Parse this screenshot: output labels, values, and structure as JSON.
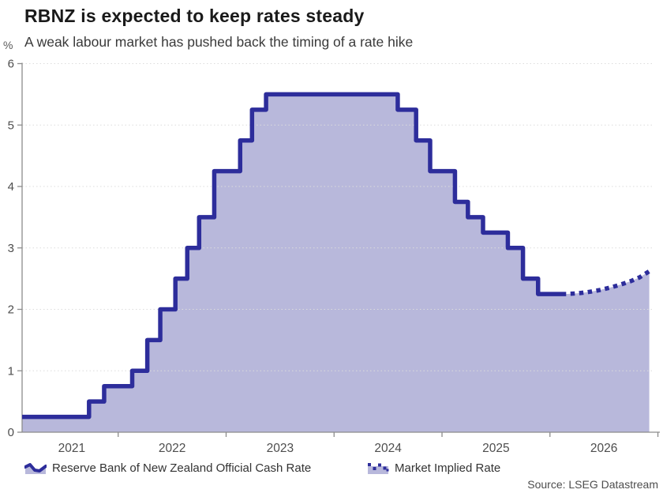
{
  "header": {
    "title": "RBNZ is expected to keep rates steady",
    "subtitle": "A weak labour market has pushed back the timing of a rate hike"
  },
  "chart_data": {
    "type": "area",
    "title": "RBNZ is expected to keep rates steady",
    "subtitle": "A weak labour market has pushed back the timing of a rate hike",
    "unit_label": "%",
    "ylabel": "%",
    "xlabel": "",
    "ylim": [
      0,
      6
    ],
    "y_ticks": [
      0,
      1,
      2,
      3,
      4,
      5,
      6
    ],
    "x_domain": [
      2021.11,
      2026.92
    ],
    "x_tick_years": [
      2022,
      2023,
      2024,
      2025,
      2026,
      2027
    ],
    "x_labels": [
      {
        "label": "2021",
        "center": 2021.57
      },
      {
        "label": "2022",
        "center": 2022.5
      },
      {
        "label": "2023",
        "center": 2023.5
      },
      {
        "label": "2024",
        "center": 2024.5
      },
      {
        "label": "2025",
        "center": 2025.5
      },
      {
        "label": "2026",
        "center": 2026.5
      }
    ],
    "grid": true,
    "legend_position": "bottom",
    "series": [
      {
        "name": "Reserve Bank of New Zealand Official Cash Rate",
        "type": "step-area",
        "line_style": "solid",
        "points": [
          [
            2021.11,
            0.25
          ],
          [
            2021.73,
            0.5
          ],
          [
            2021.87,
            0.75
          ],
          [
            2022.13,
            1.0
          ],
          [
            2022.27,
            1.5
          ],
          [
            2022.39,
            2.0
          ],
          [
            2022.53,
            2.5
          ],
          [
            2022.64,
            3.0
          ],
          [
            2022.75,
            3.5
          ],
          [
            2022.89,
            4.25
          ],
          [
            2023.13,
            4.75
          ],
          [
            2023.24,
            5.25
          ],
          [
            2023.37,
            5.5
          ],
          [
            2024.59,
            5.25
          ],
          [
            2024.76,
            4.75
          ],
          [
            2024.89,
            4.25
          ],
          [
            2025.12,
            3.75
          ],
          [
            2025.24,
            3.5
          ],
          [
            2025.38,
            3.25
          ],
          [
            2025.61,
            3.0
          ],
          [
            2025.75,
            2.5
          ],
          [
            2025.89,
            2.25
          ],
          [
            2026.15,
            2.25
          ]
        ]
      },
      {
        "name": "Market Implied Rate",
        "type": "line",
        "line_style": "dotted",
        "points": [
          [
            2026.15,
            2.25
          ],
          [
            2026.25,
            2.26
          ],
          [
            2026.35,
            2.28
          ],
          [
            2026.45,
            2.31
          ],
          [
            2026.55,
            2.35
          ],
          [
            2026.65,
            2.4
          ],
          [
            2026.75,
            2.46
          ],
          [
            2026.83,
            2.52
          ],
          [
            2026.92,
            2.62
          ]
        ]
      }
    ]
  },
  "footer": {
    "source": "Source: LSEG Datastream"
  },
  "colors": {
    "line": "#2d2d9b",
    "fill": "#b8b8db",
    "grid": "#dcdcdc",
    "axis": "#8c8c8c",
    "tick_text": "#4d4d4d",
    "title_text": "#1a1a1a",
    "subtitle_text": "#3a3a3a"
  }
}
